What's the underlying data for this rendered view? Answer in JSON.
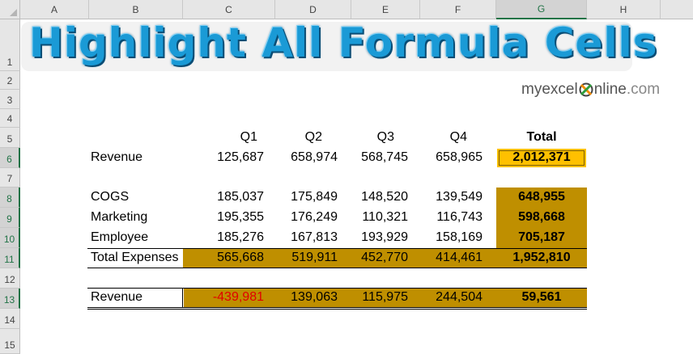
{
  "columns": [
    "A",
    "B",
    "C",
    "D",
    "E",
    "F",
    "G",
    "H"
  ],
  "selected_column": "G",
  "rows": [
    "1",
    "2",
    "3",
    "4",
    "5",
    "6",
    "7",
    "8",
    "9",
    "10",
    "11",
    "12",
    "13",
    "14",
    "15"
  ],
  "selected_rows": [
    "6",
    "8",
    "9",
    "10",
    "11",
    "13"
  ],
  "banner": {
    "title": "Highlight All Formula Cells"
  },
  "logo": {
    "pre": "myexcel",
    "post": "nline",
    "suffix": ".com"
  },
  "table": {
    "headers": [
      "Q1",
      "Q2",
      "Q3",
      "Q4",
      "Total"
    ],
    "revenue": {
      "label": "Revenue",
      "values": [
        "125,687",
        "658,974",
        "568,745",
        "658,965"
      ],
      "total": "2,012,371"
    },
    "expenses": [
      {
        "label": "COGS",
        "values": [
          "185,037",
          "175,849",
          "148,520",
          "139,549"
        ],
        "total": "648,955"
      },
      {
        "label": "Marketing",
        "values": [
          "195,355",
          "176,249",
          "110,321",
          "116,743"
        ],
        "total": "598,668"
      },
      {
        "label": "Employee",
        "values": [
          "185,276",
          "167,813",
          "193,929",
          "158,169"
        ],
        "total": "705,187"
      }
    ],
    "total_expenses": {
      "label": "Total Expenses",
      "values": [
        "565,668",
        "519,911",
        "452,770",
        "414,461"
      ],
      "total": "1,952,810"
    },
    "net": {
      "label": "Revenue",
      "values": [
        "-439,981",
        "139,063",
        "115,975",
        "244,504"
      ],
      "total": "59,561"
    }
  },
  "colors": {
    "formula_fill": "#bf8f00",
    "selected_fill": "#ffc000",
    "negative": "#e00000",
    "title": "#1a9ad6"
  }
}
